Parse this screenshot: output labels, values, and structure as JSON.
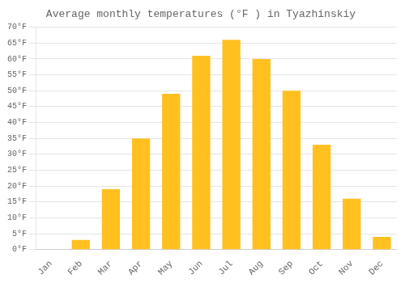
{
  "chart_data": {
    "type": "bar",
    "title": "Average monthly temperatures (°F ) in Tyazhinskiy",
    "categories": [
      "Jan",
      "Feb",
      "Mar",
      "Apr",
      "May",
      "Jun",
      "Jul",
      "Aug",
      "Sep",
      "Oct",
      "Nov",
      "Dec"
    ],
    "values": [
      0,
      3,
      19,
      35,
      49,
      61,
      66,
      60,
      50,
      33,
      16,
      4
    ],
    "color": "#FFC020",
    "ylim": [
      0,
      70
    ],
    "yticks": [
      {
        "value": 0,
        "label": "0°F"
      },
      {
        "value": 5,
        "label": "5°F"
      },
      {
        "value": 10,
        "label": "10°F"
      },
      {
        "value": 15,
        "label": "15°F"
      },
      {
        "value": 20,
        "label": "20°F"
      },
      {
        "value": 25,
        "label": "25°F"
      },
      {
        "value": 30,
        "label": "30°F"
      },
      {
        "value": 35,
        "label": "35°F"
      },
      {
        "value": 40,
        "label": "40°F"
      },
      {
        "value": 45,
        "label": "45°F"
      },
      {
        "value": 50,
        "label": "50°F"
      },
      {
        "value": 55,
        "label": "55°F"
      },
      {
        "value": 60,
        "label": "60°F"
      },
      {
        "value": 65,
        "label": "65°F"
      },
      {
        "value": 70,
        "label": "70°F"
      }
    ],
    "grid": true
  }
}
